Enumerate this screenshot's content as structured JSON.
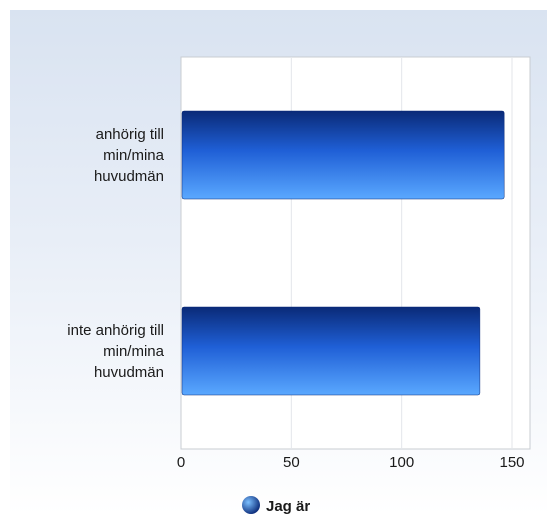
{
  "chart_data": {
    "type": "bar",
    "orientation": "horizontal",
    "categories": [
      [
        "anhörig till",
        "min/mina",
        "huvudmän"
      ],
      [
        "inte anhörig till",
        "min/mina",
        "huvudmän"
      ]
    ],
    "series": [
      {
        "name": "Jag är",
        "values": [
          146,
          135
        ],
        "color": "#1f5fd6"
      }
    ],
    "xlim": [
      0,
      150
    ],
    "xticks": [
      0,
      50,
      100,
      150
    ],
    "grid": true,
    "legend": "bottom-center"
  }
}
